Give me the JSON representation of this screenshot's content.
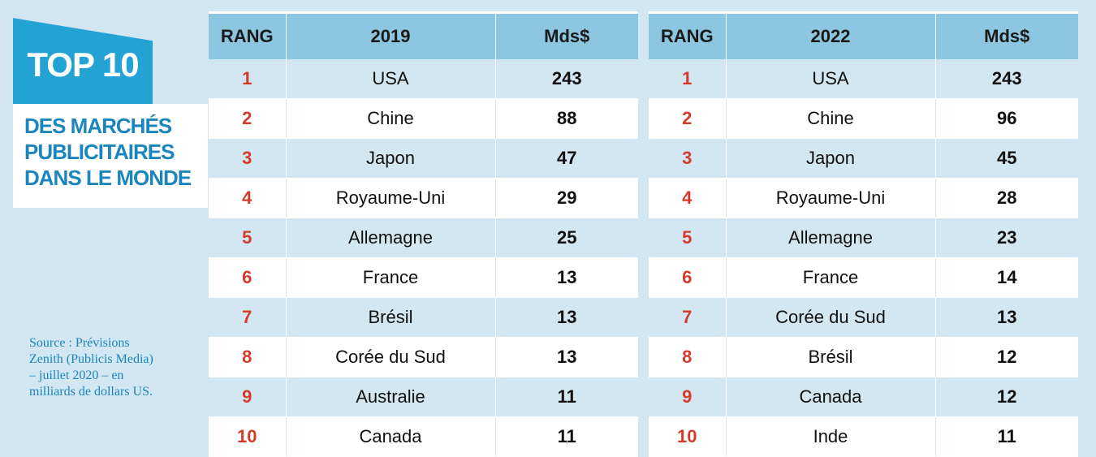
{
  "title": {
    "badge": "TOP 10",
    "subtitle_lines": [
      "DES MARCHÉS",
      "PUBLICITAIRES",
      "DANS LE MONDE"
    ]
  },
  "source_lines": [
    "Source : Prévisions",
    "Zenith (Publicis Media)",
    "– juillet 2020 – en",
    "milliards de dollars US."
  ],
  "colors": {
    "accent": "#23a3d4",
    "subtitle": "#1b86bd",
    "rank": "#d53a2b",
    "header_bg": "#8dc6e0",
    "row_alt": "#d2e7f1"
  },
  "chart_data": [
    {
      "type": "table",
      "columns": [
        "RANG",
        "2019",
        "Mds$"
      ],
      "rows": [
        [
          "1",
          "USA",
          "243"
        ],
        [
          "2",
          "Chine",
          "88"
        ],
        [
          "3",
          "Japon",
          "47"
        ],
        [
          "4",
          "Royaume-Uni",
          "29"
        ],
        [
          "5",
          "Allemagne",
          "25"
        ],
        [
          "6",
          "France",
          "13"
        ],
        [
          "7",
          "Brésil",
          "13"
        ],
        [
          "8",
          "Corée du Sud",
          "13"
        ],
        [
          "9",
          "Australie",
          "11"
        ],
        [
          "10",
          "Canada",
          "11"
        ]
      ]
    },
    {
      "type": "table",
      "columns": [
        "RANG",
        "2022",
        "Mds$"
      ],
      "rows": [
        [
          "1",
          "USA",
          "243"
        ],
        [
          "2",
          "Chine",
          "96"
        ],
        [
          "3",
          "Japon",
          "45"
        ],
        [
          "4",
          "Royaume-Uni",
          "28"
        ],
        [
          "5",
          "Allemagne",
          "23"
        ],
        [
          "6",
          "France",
          "14"
        ],
        [
          "7",
          "Corée du Sud",
          "13"
        ],
        [
          "8",
          "Brésil",
          "12"
        ],
        [
          "9",
          "Canada",
          "12"
        ],
        [
          "10",
          "Inde",
          "11"
        ]
      ]
    }
  ]
}
